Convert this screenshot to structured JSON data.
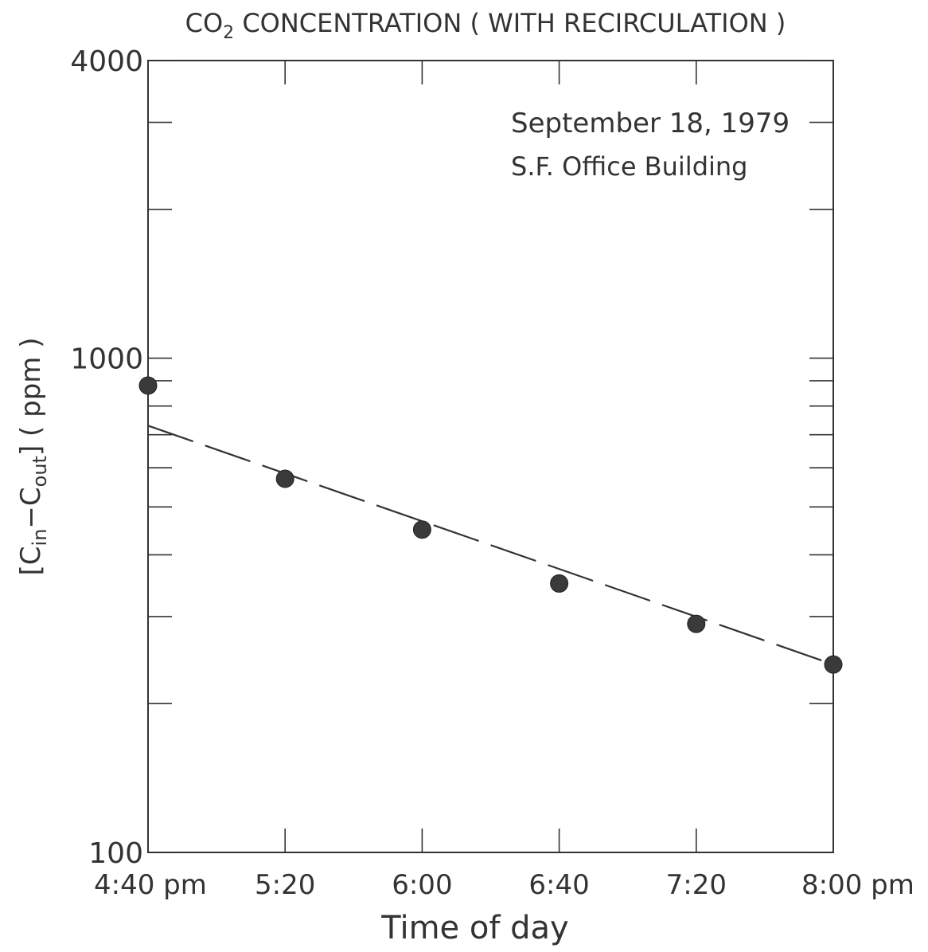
{
  "chart_data": {
    "type": "scatter",
    "title": "CO",
    "title_subscript": "2",
    "title_rest": " CONCENTRATION ( WITH RECIRCULATION )",
    "annotation_line1": "September 18, 1979",
    "annotation_line2": "S.F. Office Building",
    "xlabel": "Time of day",
    "ylabel_parts": [
      "[C",
      "in",
      "−C",
      "out",
      "]  ( ppm )"
    ],
    "y_scale": "log",
    "ylim": [
      100,
      4000
    ],
    "y_tick_labels": [
      {
        "value": 100,
        "label": "100"
      },
      {
        "value": 1000,
        "label": "1000"
      },
      {
        "value": 4000,
        "label": "4000"
      }
    ],
    "x_categories": [
      "4:40 pm",
      "5:20",
      "6:00",
      "6:40",
      "7:20",
      "8:00 pm"
    ],
    "points": [
      {
        "x": "4:40 pm",
        "y": 880
      },
      {
        "x": "5:20",
        "y": 570
      },
      {
        "x": "6:00",
        "y": 450
      },
      {
        "x": "6:40",
        "y": 350
      },
      {
        "x": "7:20",
        "y": 290
      },
      {
        "x": "8:00 pm",
        "y": 240
      }
    ],
    "fit_line": {
      "style": "dashed",
      "start": {
        "x": "4:40 pm",
        "y": 730
      },
      "end": {
        "x": "8:00 pm",
        "y": 240
      }
    },
    "grid": false,
    "legend": "none"
  }
}
